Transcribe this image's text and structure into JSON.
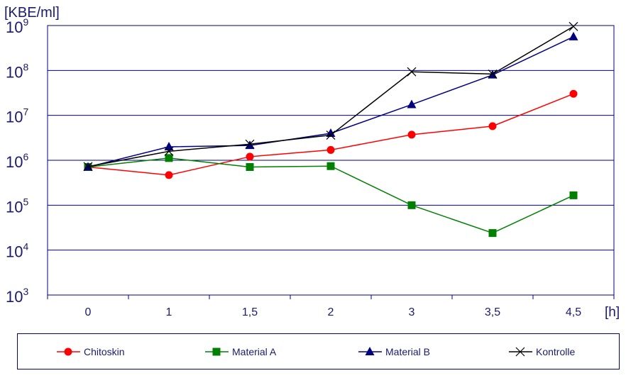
{
  "chart_data": {
    "type": "line",
    "y_unit_label": "[KBE/ml]",
    "x_unit_label": "[h]",
    "yscale": "log",
    "ylim_exponent": [
      3,
      9
    ],
    "y_tick_base": "10",
    "y_tick_exponents": [
      "3",
      "4",
      "5",
      "6",
      "7",
      "8",
      "9"
    ],
    "categories": [
      "0",
      "1",
      "1,5",
      "2",
      "3",
      "3,5",
      "4,5"
    ],
    "grid": "horizontal",
    "legend_position": "bottom",
    "series": [
      {
        "name": "Chitoskin",
        "color": "#ff0000",
        "marker": "circle",
        "log10_values": [
          5.85,
          5.67,
          6.08,
          6.23,
          6.57,
          6.76,
          7.48
        ]
      },
      {
        "name": "Material A",
        "color": "#008000",
        "marker": "square",
        "log10_values": [
          5.85,
          6.05,
          5.85,
          5.87,
          5.0,
          4.38,
          5.22
        ]
      },
      {
        "name": "Material B",
        "color": "#000080",
        "marker": "triangle",
        "log10_values": [
          5.85,
          6.3,
          6.33,
          6.6,
          7.24,
          7.9,
          8.75
        ]
      },
      {
        "name": "Kontrolle",
        "color": "#000000",
        "marker": "x",
        "log10_values": [
          5.86,
          6.2,
          6.36,
          6.56,
          7.97,
          7.92,
          8.98
        ]
      }
    ]
  }
}
